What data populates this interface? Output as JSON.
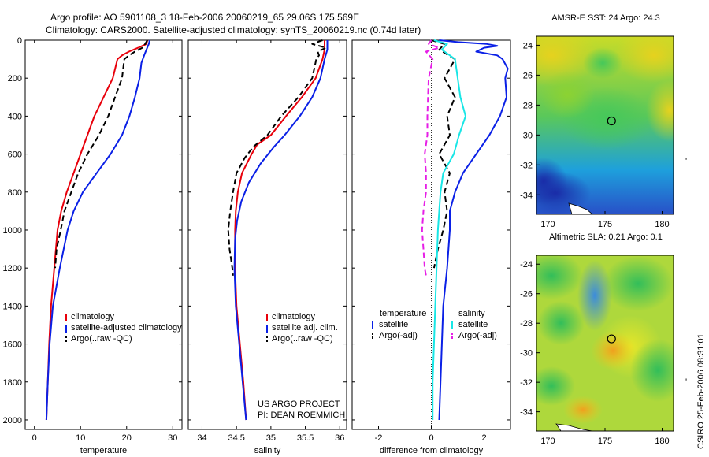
{
  "header": {
    "line1": "Argo profile: AO 5901108_3 18-Feb-2006 20060219_65 29.06S 175.569E",
    "line2": "Climatology: CARS2000. Satellite-adjusted climatology: synTS_20060219.nc (0.74d later)"
  },
  "side_label": "CSIRO 25-Feb-2006 08:31:01",
  "project": {
    "line1": "US ARGO PROJECT",
    "line2": "PI: DEAN ROEMMICH"
  },
  "colors": {
    "red": "#e8000b",
    "blue": "#0a20e6",
    "black": "#000000",
    "cyan": "#18e6e6",
    "magenta": "#e61ee6"
  },
  "chart_data": [
    {
      "type": "line",
      "xlabel": "temperature",
      "xlim": [
        -2,
        32
      ],
      "ylim": [
        0,
        2050
      ],
      "y_reversed": true,
      "xticks": [
        0,
        10,
        20,
        30
      ],
      "yticks": [
        0,
        200,
        400,
        600,
        800,
        1000,
        1200,
        1400,
        1600,
        1800,
        2000
      ],
      "legend": [
        "climatology",
        "satellite-adjusted climatology",
        "Argo(..raw -QC)"
      ],
      "series": [
        {
          "name": "climatology",
          "color": "red",
          "dash": "solid",
          "points": [
            [
              24.5,
              0
            ],
            [
              24.3,
              20
            ],
            [
              22.5,
              40
            ],
            [
              20.5,
              60
            ],
            [
              19,
              80
            ],
            [
              18,
              100
            ],
            [
              17,
              200
            ],
            [
              15,
              300
            ],
            [
              13,
              400
            ],
            [
              11.5,
              500
            ],
            [
              10,
              600
            ],
            [
              8.5,
              700
            ],
            [
              7,
              800
            ],
            [
              5.8,
              900
            ],
            [
              5,
              1000
            ],
            [
              4.3,
              1200
            ],
            [
              3.6,
              1400
            ],
            [
              3.2,
              1600
            ],
            [
              2.9,
              1800
            ],
            [
              2.6,
              2000
            ]
          ]
        },
        {
          "name": "satellite-adjusted climatology",
          "color": "blue",
          "dash": "solid",
          "points": [
            [
              25,
              0
            ],
            [
              24.8,
              20
            ],
            [
              24.3,
              50
            ],
            [
              23.8,
              80
            ],
            [
              23.2,
              120
            ],
            [
              22.8,
              200
            ],
            [
              21.8,
              300
            ],
            [
              20.6,
              400
            ],
            [
              19,
              500
            ],
            [
              16.5,
              600
            ],
            [
              13.5,
              700
            ],
            [
              10.5,
              800
            ],
            [
              8.5,
              900
            ],
            [
              7.2,
              1000
            ],
            [
              5.5,
              1200
            ],
            [
              4,
              1400
            ],
            [
              3.3,
              1600
            ],
            [
              2.9,
              1800
            ],
            [
              2.6,
              2000
            ]
          ]
        },
        {
          "name": "Argo(..raw -QC)",
          "color": "black",
          "dash": "dashed",
          "points": [
            [
              24.5,
              0
            ],
            [
              24,
              20
            ],
            [
              23.4,
              40
            ],
            [
              21.8,
              60
            ],
            [
              20.5,
              80
            ],
            [
              19.5,
              100
            ],
            [
              19,
              200
            ],
            [
              17.5,
              300
            ],
            [
              16,
              400
            ],
            [
              14,
              500
            ],
            [
              11.5,
              600
            ],
            [
              9.5,
              700
            ],
            [
              8,
              800
            ],
            [
              6.5,
              900
            ],
            [
              5.7,
              1000
            ],
            [
              4.8,
              1100
            ],
            [
              4.5,
              1200
            ]
          ]
        }
      ]
    },
    {
      "type": "line",
      "xlabel": "salinity",
      "xlim": [
        33.8,
        36.1
      ],
      "ylim": [
        0,
        2050
      ],
      "y_reversed": true,
      "xticks": [
        34,
        34.5,
        35,
        35.5,
        36
      ],
      "legend": [
        "climatology",
        "satellite adj. clim.",
        "Argo(..raw -QC)"
      ],
      "series": [
        {
          "name": "climatology",
          "color": "red",
          "dash": "solid",
          "points": [
            [
              35.78,
              0
            ],
            [
              35.78,
              50
            ],
            [
              35.75,
              100
            ],
            [
              35.65,
              200
            ],
            [
              35.45,
              300
            ],
            [
              35.22,
              400
            ],
            [
              35,
              500
            ],
            [
              34.8,
              550
            ],
            [
              34.72,
              600
            ],
            [
              34.58,
              700
            ],
            [
              34.52,
              800
            ],
            [
              34.49,
              900
            ],
            [
              34.48,
              1000
            ],
            [
              34.48,
              1200
            ],
            [
              34.5,
              1400
            ],
            [
              34.55,
              1600
            ],
            [
              34.6,
              1800
            ],
            [
              34.64,
              2000
            ]
          ]
        },
        {
          "name": "satellite adj. clim.",
          "color": "blue",
          "dash": "solid",
          "points": [
            [
              35.82,
              0
            ],
            [
              35.82,
              50
            ],
            [
              35.78,
              100
            ],
            [
              35.72,
              200
            ],
            [
              35.6,
              300
            ],
            [
              35.42,
              400
            ],
            [
              35.2,
              500
            ],
            [
              35.05,
              560
            ],
            [
              34.85,
              650
            ],
            [
              34.68,
              750
            ],
            [
              34.57,
              850
            ],
            [
              34.51,
              950
            ],
            [
              34.48,
              1050
            ],
            [
              34.47,
              1200
            ],
            [
              34.49,
              1400
            ],
            [
              34.54,
              1600
            ],
            [
              34.59,
              1800
            ],
            [
              34.64,
              2000
            ]
          ]
        },
        {
          "name": "Argo(..raw -QC)",
          "color": "black",
          "dash": "dashed",
          "points": [
            [
              35.75,
              0
            ],
            [
              35.6,
              20
            ],
            [
              35.8,
              40
            ],
            [
              35.68,
              60
            ],
            [
              35.7,
              80
            ],
            [
              35.66,
              100
            ],
            [
              35.6,
              200
            ],
            [
              35.4,
              300
            ],
            [
              35.15,
              400
            ],
            [
              34.95,
              500
            ],
            [
              34.75,
              560
            ],
            [
              34.62,
              620
            ],
            [
              34.5,
              700
            ],
            [
              34.45,
              800
            ],
            [
              34.41,
              900
            ],
            [
              34.38,
              1000
            ],
            [
              34.4,
              1100
            ],
            [
              34.44,
              1200
            ],
            [
              34.45,
              1240
            ]
          ]
        }
      ]
    },
    {
      "type": "line",
      "xlabel": "difference from climatology",
      "xlim": [
        -3,
        3
      ],
      "ylim": [
        0,
        2050
      ],
      "y_reversed": true,
      "xticks": [
        -2,
        0,
        2
      ],
      "zero_line": 0,
      "legend_titles": [
        "temperature",
        "salinity"
      ],
      "legend": [
        "satellite",
        "Argo(-adj)",
        "satellite",
        "Argo(-adj)"
      ],
      "series": [
        {
          "name": "satellite",
          "group": "temperature",
          "color": "blue",
          "dash": "solid",
          "points": [
            [
              0.3,
              0
            ],
            [
              1,
              10
            ],
            [
              2.1,
              20
            ],
            [
              2.5,
              30
            ],
            [
              2,
              40
            ],
            [
              1.7,
              60
            ],
            [
              2.5,
              80
            ],
            [
              2.7,
              100
            ],
            [
              2.9,
              150
            ],
            [
              2.8,
              200
            ],
            [
              2.85,
              300
            ],
            [
              2.6,
              400
            ],
            [
              2.2,
              500
            ],
            [
              1.7,
              600
            ],
            [
              1.2,
              700
            ],
            [
              0.9,
              800
            ],
            [
              0.7,
              900
            ],
            [
              0.7,
              1000
            ],
            [
              0.6,
              1200
            ],
            [
              0.45,
              1400
            ],
            [
              0.4,
              1600
            ],
            [
              0.35,
              1800
            ],
            [
              0.3,
              2000
            ]
          ]
        },
        {
          "name": "Argo(-adj)",
          "group": "temperature",
          "color": "black",
          "dash": "dashed",
          "points": [
            [
              0,
              0
            ],
            [
              0.5,
              20
            ],
            [
              0.3,
              50
            ],
            [
              0.9,
              100
            ],
            [
              0.5,
              200
            ],
            [
              0.9,
              300
            ],
            [
              0.6,
              400
            ],
            [
              0.7,
              500
            ],
            [
              0.3,
              600
            ],
            [
              0.7,
              700
            ],
            [
              0.5,
              800
            ],
            [
              0.6,
              900
            ],
            [
              0.45,
              1000
            ],
            [
              0.25,
              1100
            ],
            [
              0.1,
              1200
            ]
          ]
        },
        {
          "name": "satellite",
          "group": "salinity",
          "color": "cyan",
          "dash": "solid",
          "points": [
            [
              0.1,
              0
            ],
            [
              0.6,
              20
            ],
            [
              0.4,
              50
            ],
            [
              0.9,
              100
            ],
            [
              1,
              200
            ],
            [
              1.1,
              300
            ],
            [
              1.3,
              400
            ],
            [
              1.05,
              500
            ],
            [
              0.85,
              600
            ],
            [
              0.45,
              700
            ],
            [
              0.35,
              800
            ],
            [
              0.3,
              900
            ],
            [
              0.25,
              1000
            ],
            [
              0.2,
              1200
            ],
            [
              0.15,
              1400
            ],
            [
              0.1,
              1600
            ],
            [
              0.05,
              1800
            ],
            [
              0.05,
              2000
            ]
          ]
        },
        {
          "name": "Argo(-adj)",
          "group": "salinity",
          "color": "magenta",
          "dash": "dashed",
          "points": [
            [
              0,
              0
            ],
            [
              -0.1,
              20
            ],
            [
              0.3,
              40
            ],
            [
              -0.2,
              60
            ],
            [
              0.05,
              100
            ],
            [
              -0.1,
              200
            ],
            [
              -0.15,
              400
            ],
            [
              -0.15,
              500
            ],
            [
              -0.25,
              600
            ],
            [
              -0.2,
              700
            ],
            [
              -0.2,
              800
            ],
            [
              -0.3,
              900
            ],
            [
              -0.35,
              1000
            ],
            [
              -0.3,
              1100
            ],
            [
              -0.25,
              1200
            ],
            [
              -0.2,
              1240
            ]
          ]
        }
      ]
    }
  ],
  "maps": [
    {
      "title": "AMSR-E SST: 24 Argo: 24.3",
      "xticks": [
        170,
        175,
        180
      ],
      "yticks": [
        -24,
        -26,
        -28,
        -30,
        -32,
        -34
      ],
      "xlim": [
        169,
        181
      ],
      "ylim": [
        -35.3,
        -23.4
      ],
      "marker": [
        175.569,
        -29.06
      ]
    },
    {
      "title": "Altimetric SLA: 0.21 Argo: 0.1",
      "xticks": [
        170,
        175,
        180
      ],
      "yticks": [
        -24,
        -26,
        -28,
        -30,
        -32,
        -34
      ],
      "xlim": [
        169,
        181
      ],
      "ylim": [
        -35.3,
        -23.4
      ],
      "marker": [
        175.569,
        -29.06
      ]
    }
  ]
}
